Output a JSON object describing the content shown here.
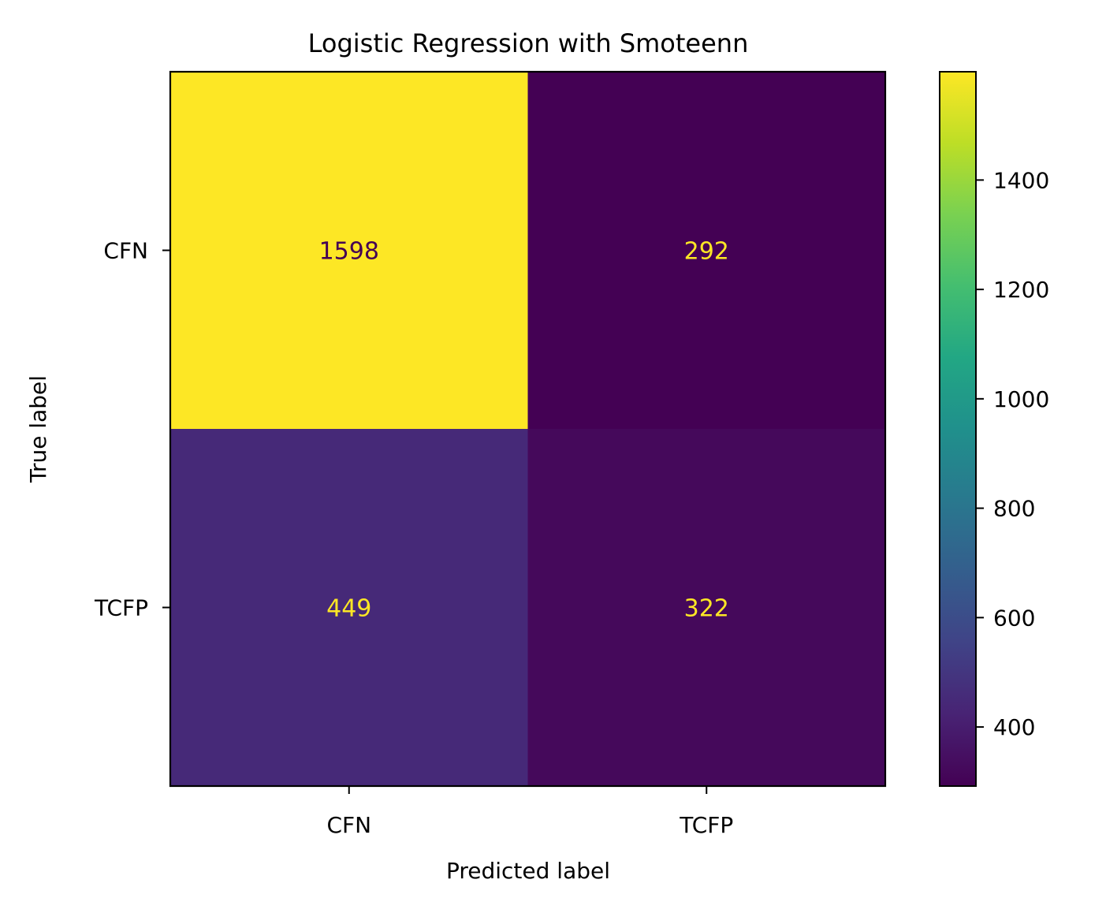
{
  "chart_data": {
    "type": "heatmap",
    "title": "Logistic Regression with Smoteenn",
    "xlabel": "Predicted label",
    "ylabel": "True label",
    "x_categories": [
      "CFN",
      "TCFP"
    ],
    "y_categories": [
      "CFN",
      "TCFP"
    ],
    "matrix": [
      [
        1598,
        292
      ],
      [
        449,
        322
      ]
    ],
    "colormap": "viridis",
    "colorbar": {
      "min": 292,
      "max": 1598,
      "ticks": [
        400,
        600,
        800,
        1000,
        1200,
        1400
      ]
    },
    "annotation_colors": {
      "on_light": "#440154",
      "on_dark": "#fde725"
    },
    "grid": false
  }
}
